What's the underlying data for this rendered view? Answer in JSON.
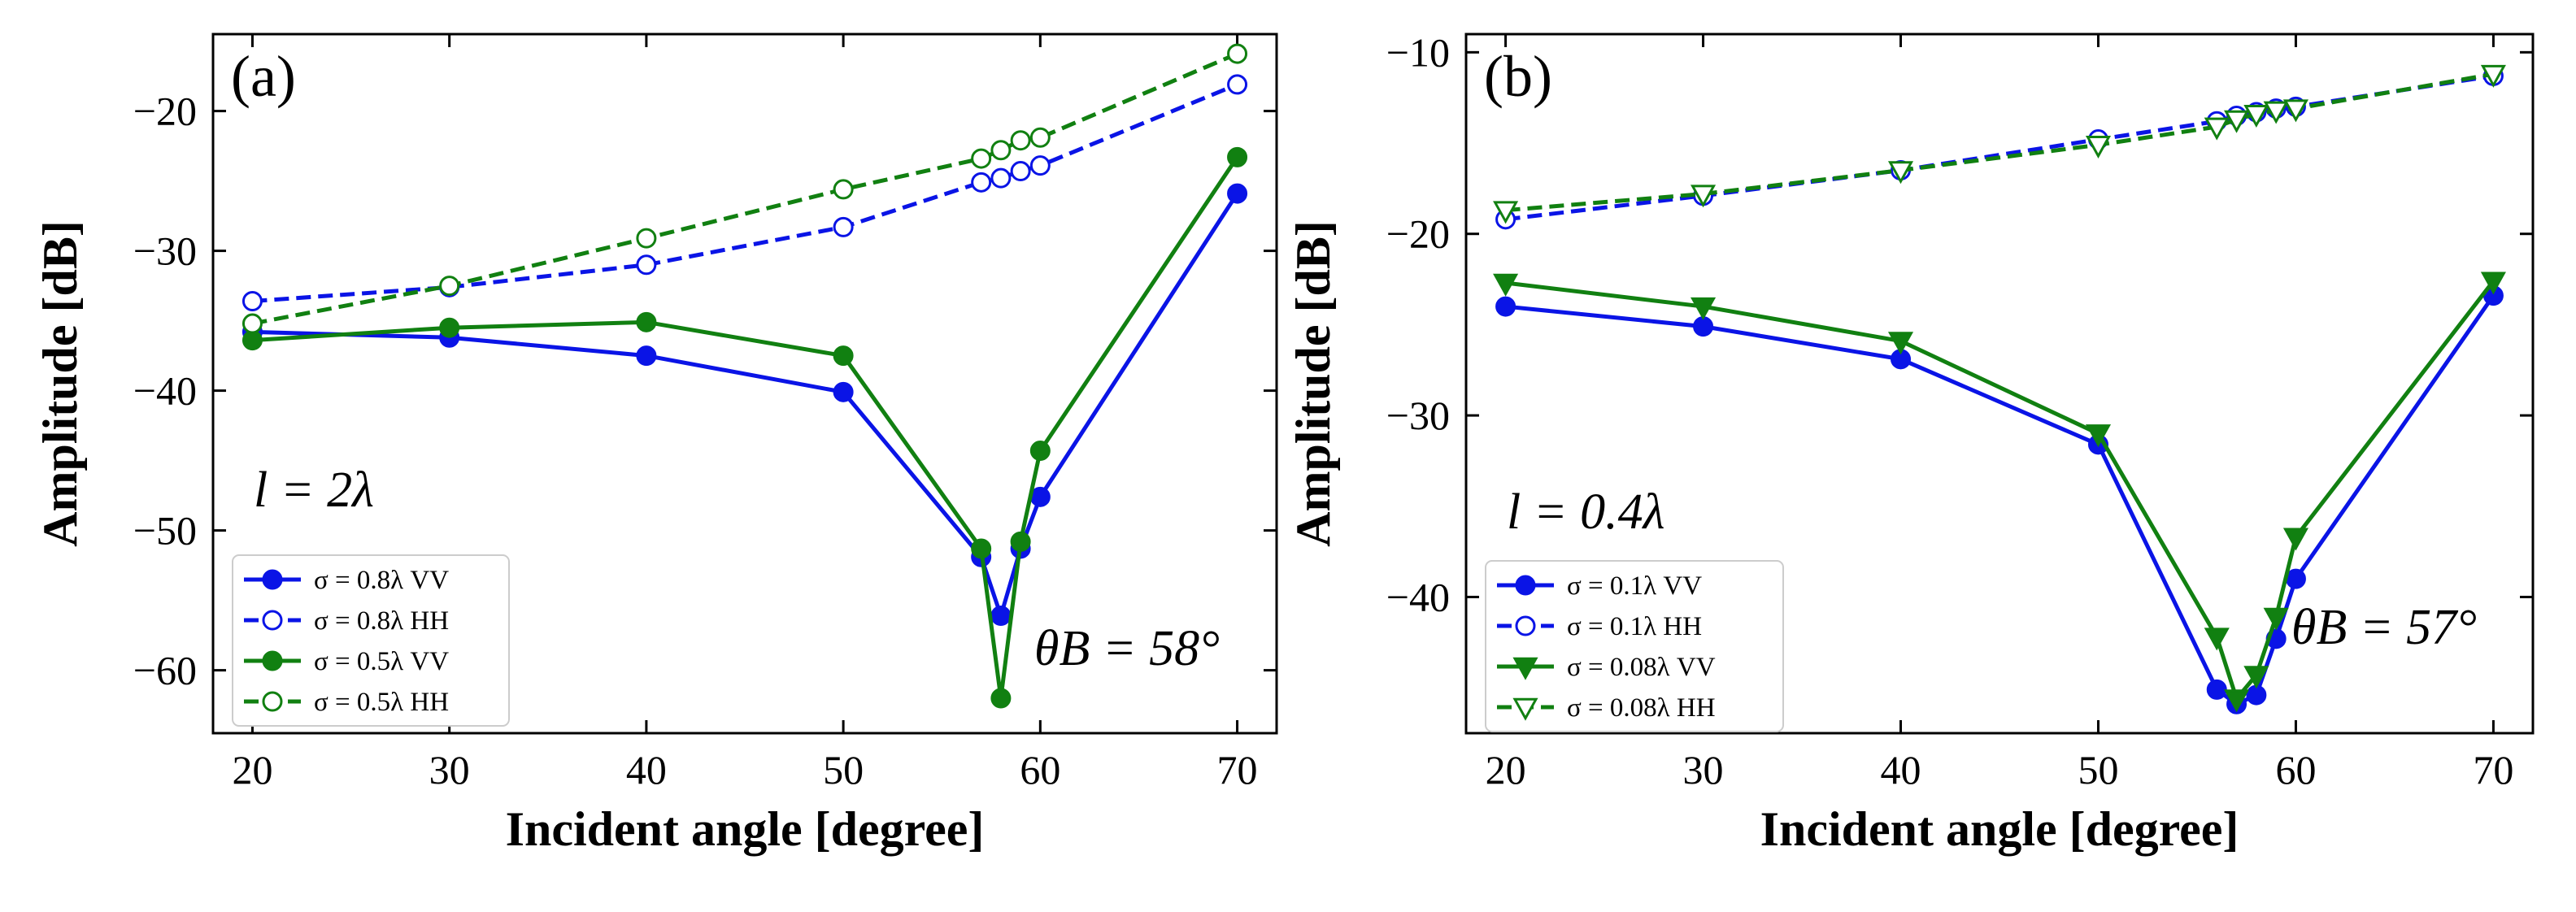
{
  "chart_data": [
    {
      "type": "line",
      "panel_label": "(a)",
      "xlabel": "Incident angle [degree]",
      "ylabel": "Amplitude [dB]",
      "xlim": [
        18,
        72
      ],
      "ylim": [
        -64.5,
        -14.5
      ],
      "xticks": [
        20,
        30,
        40,
        50,
        60,
        70
      ],
      "yticks": [
        -60,
        -50,
        -40,
        -30,
        -20
      ],
      "annotation_roughness": "l = 2λ",
      "annotation_brewster": "θB = 58°",
      "legend_position": "lower-left",
      "series": [
        {
          "name": "σ = 0.8λ  VV",
          "color": "#0a14e6",
          "dash": "solid",
          "marker": "circle",
          "filled": true,
          "x": [
            20,
            30,
            40,
            50,
            57,
            58,
            59,
            60,
            70
          ],
          "y": [
            -35.8,
            -36.2,
            -37.5,
            -40.1,
            -51.9,
            -56.1,
            -51.3,
            -47.6,
            -25.9
          ]
        },
        {
          "name": "σ = 0.8λ  HH",
          "color": "#0a14e6",
          "dash": "dashed",
          "marker": "circle",
          "filled": false,
          "x": [
            20,
            30,
            40,
            50,
            57,
            58,
            59,
            60,
            70
          ],
          "y": [
            -33.6,
            -32.6,
            -31.0,
            -28.3,
            -25.1,
            -24.8,
            -24.3,
            -23.9,
            -18.1
          ]
        },
        {
          "name": "σ = 0.5λ  VV",
          "color": "#118011",
          "dash": "solid",
          "marker": "circle",
          "filled": true,
          "x": [
            20,
            30,
            40,
            50,
            57,
            58,
            59,
            60,
            70
          ],
          "y": [
            -36.4,
            -35.5,
            -35.1,
            -37.5,
            -51.3,
            -62.0,
            -50.8,
            -44.3,
            -23.3
          ]
        },
        {
          "name": "σ = 0.5λ  HH",
          "color": "#118011",
          "dash": "dashed",
          "marker": "circle",
          "filled": false,
          "x": [
            20,
            30,
            40,
            50,
            57,
            58,
            59,
            60,
            70
          ],
          "y": [
            -35.2,
            -32.5,
            -29.1,
            -25.6,
            -23.4,
            -22.8,
            -22.1,
            -21.9,
            -15.9
          ]
        }
      ]
    },
    {
      "type": "line",
      "panel_label": "(b)",
      "xlabel": "Incident angle [degree]",
      "ylabel": "Amplitude [dB]",
      "xlim": [
        18,
        72
      ],
      "ylim": [
        -47.5,
        -9.0
      ],
      "xticks": [
        20,
        30,
        40,
        50,
        60,
        70
      ],
      "yticks": [
        -40,
        -30,
        -20,
        -10
      ],
      "annotation_roughness": "l = 0.4λ",
      "annotation_brewster": "θB = 57°",
      "legend_position": "lower-left",
      "series": [
        {
          "name": "σ = 0.1λ  VV",
          "color": "#0a14e6",
          "dash": "solid",
          "marker": "circle",
          "filled": true,
          "x": [
            20,
            30,
            40,
            50,
            56,
            57,
            58,
            59,
            60,
            70
          ],
          "y": [
            -24.0,
            -25.1,
            -26.9,
            -31.6,
            -45.1,
            -45.9,
            -45.4,
            -42.3,
            -39.0,
            -23.4
          ]
        },
        {
          "name": "σ = 0.1λ  HH",
          "color": "#0a14e6",
          "dash": "dashed",
          "marker": "circle",
          "filled": false,
          "x": [
            20,
            30,
            40,
            50,
            56,
            57,
            58,
            59,
            60,
            70
          ],
          "y": [
            -19.2,
            -17.9,
            -16.5,
            -14.8,
            -13.8,
            -13.5,
            -13.3,
            -13.1,
            -13.0,
            -11.3
          ]
        },
        {
          "name": "σ = 0.08λ  VV",
          "color": "#118011",
          "dash": "solid",
          "marker": "triangle-down",
          "filled": true,
          "x": [
            20,
            30,
            40,
            50,
            56,
            57,
            58,
            59,
            60,
            70
          ],
          "y": [
            -22.7,
            -24.0,
            -25.9,
            -31.0,
            -42.2,
            -45.6,
            -44.3,
            -41.1,
            -36.7,
            -22.6
          ]
        },
        {
          "name": "σ = 0.08λ  HH",
          "color": "#118011",
          "dash": "dashed",
          "marker": "triangle-down",
          "filled": false,
          "x": [
            20,
            30,
            40,
            50,
            56,
            57,
            58,
            59,
            60,
            70
          ],
          "y": [
            -18.7,
            -17.8,
            -16.5,
            -15.1,
            -14.1,
            -13.7,
            -13.4,
            -13.2,
            -13.1,
            -11.2
          ]
        }
      ]
    }
  ]
}
